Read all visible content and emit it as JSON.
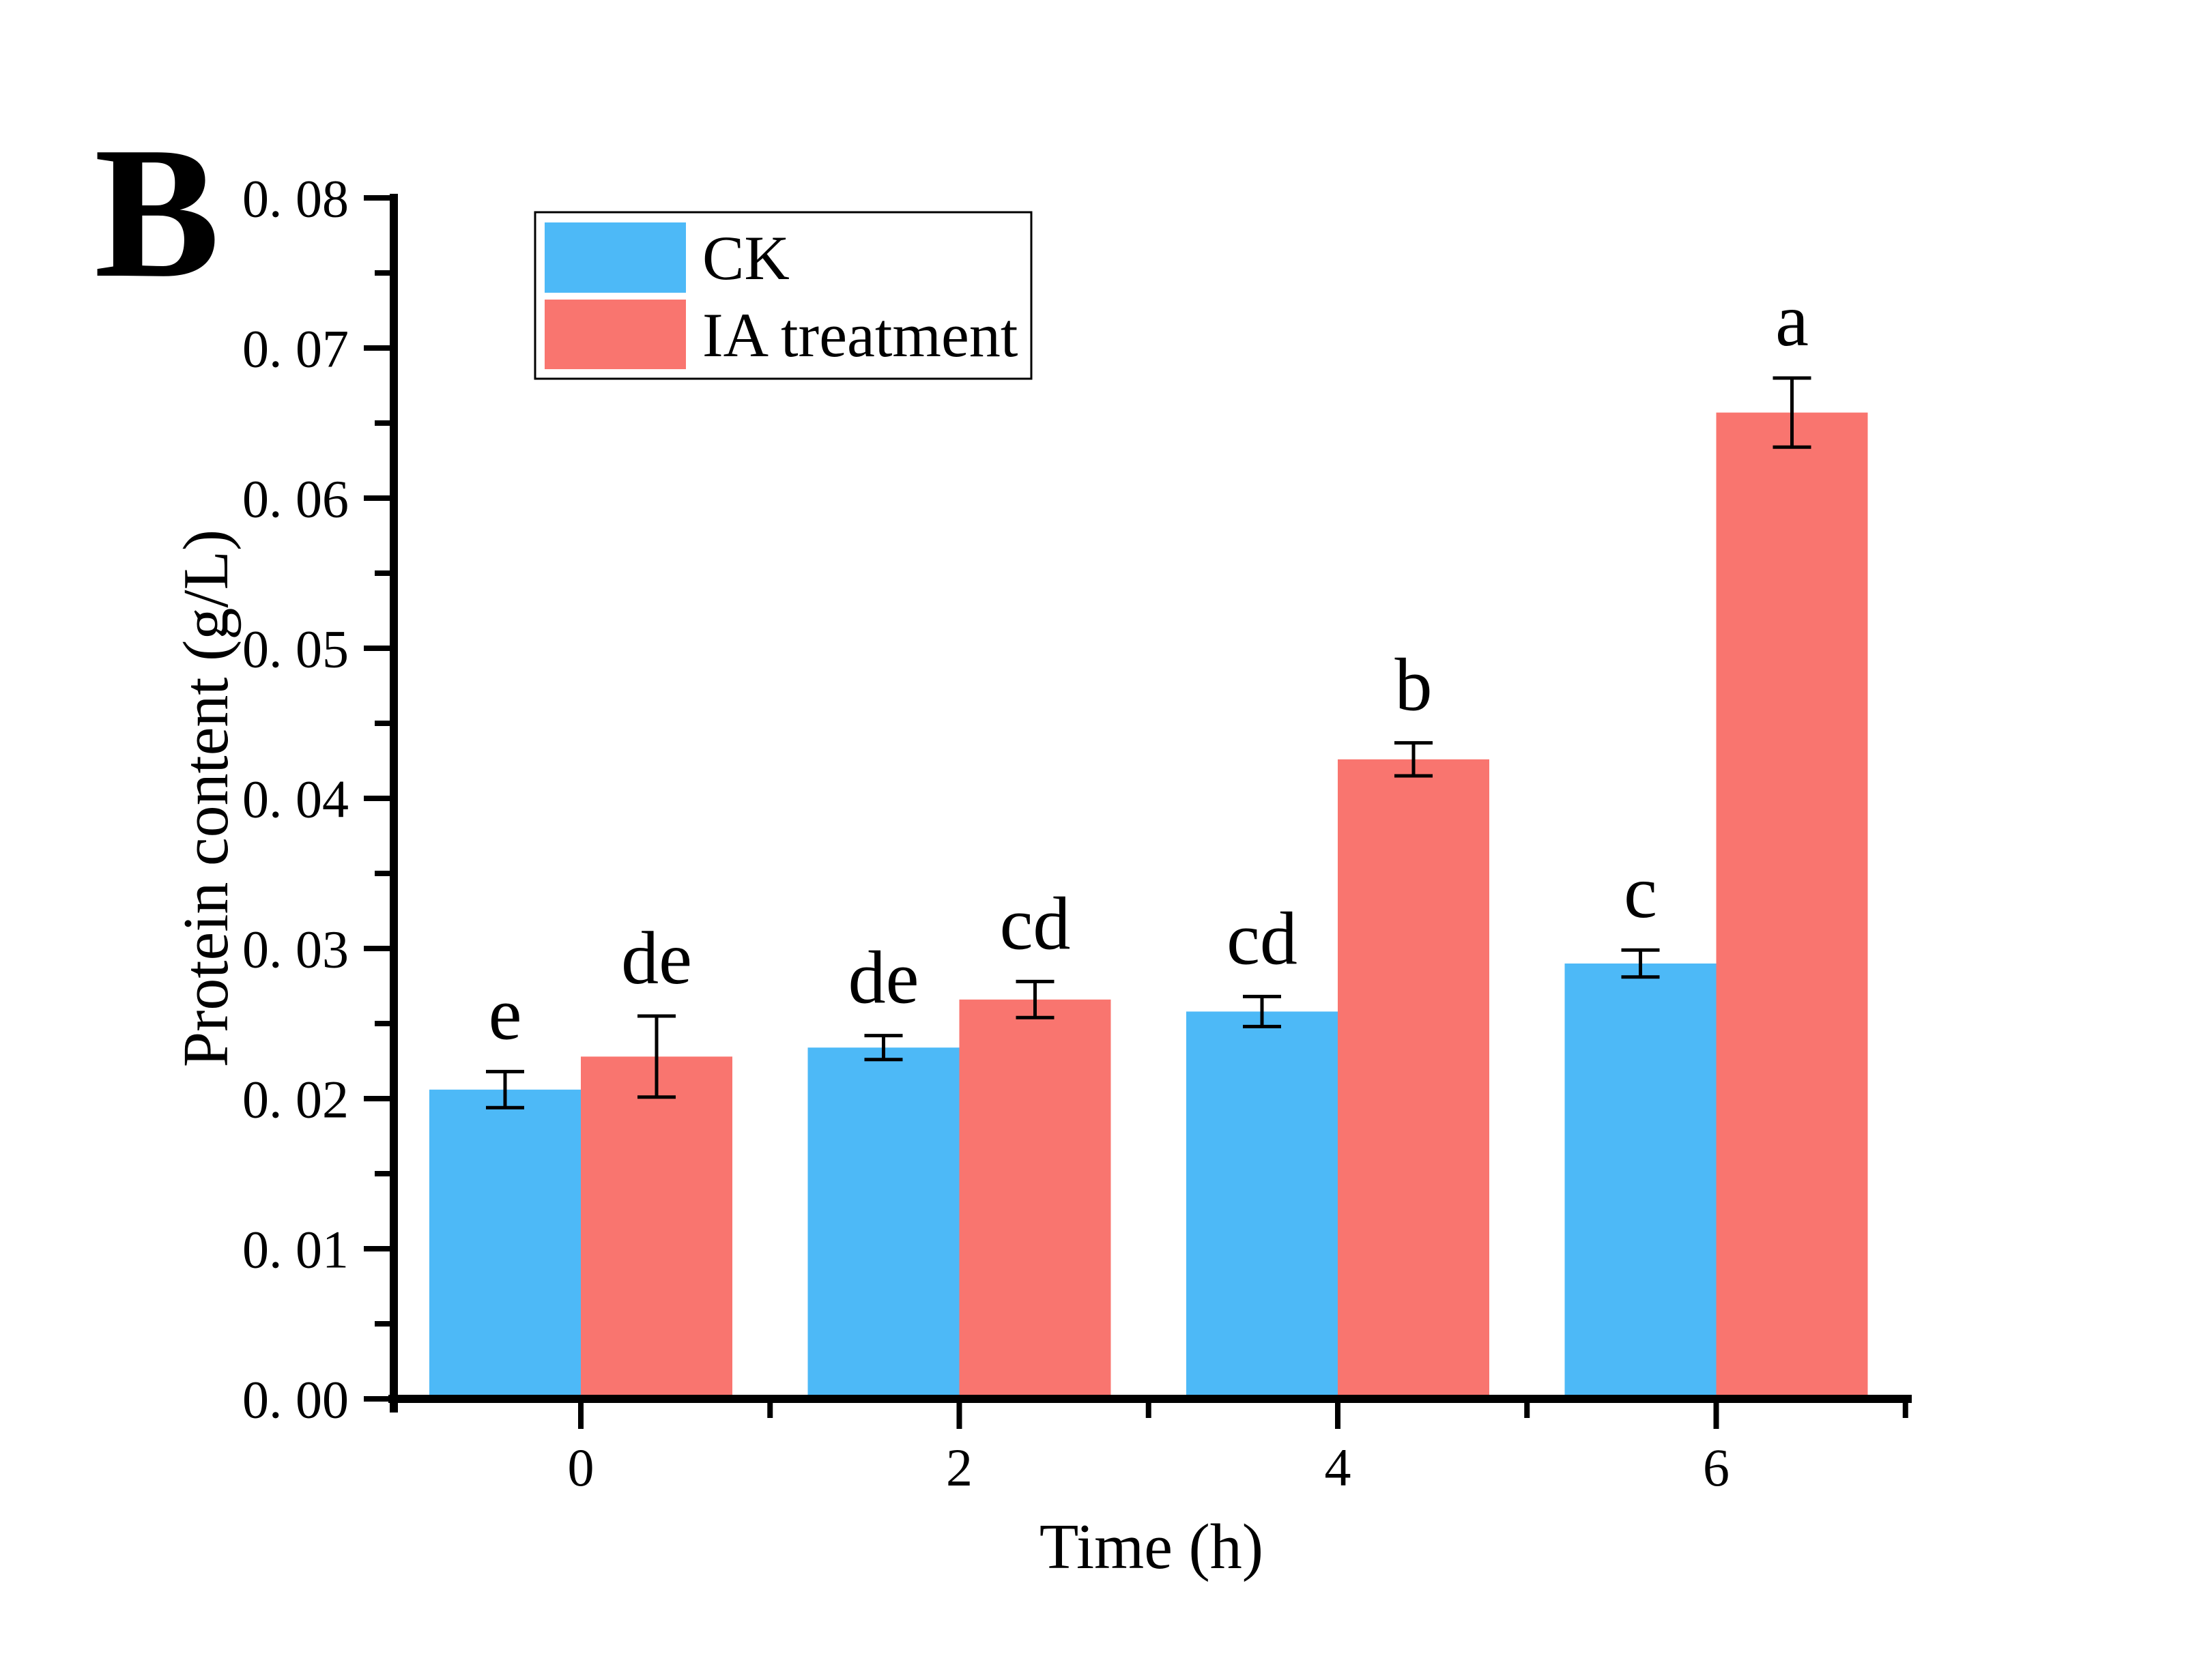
{
  "panel_label": "B",
  "axes": {
    "y_title": "Protein content (g/L)",
    "x_title": "Time (h)",
    "y_tick_labels": [
      "0. 00",
      "0. 01",
      "0. 02",
      "0. 03",
      "0. 04",
      "0. 05",
      "0. 06",
      "0. 07",
      "0. 08"
    ],
    "x_tick_labels": [
      "0",
      "2",
      "4",
      "6"
    ]
  },
  "legend": {
    "entries": [
      {
        "label": "CK",
        "color": "#4DB9F7"
      },
      {
        "label": "IA treatment",
        "color": "#F9756F"
      }
    ]
  },
  "colors": {
    "ck_bar": "#4DB9F7",
    "ia_bar": "#F9756F",
    "axis": "#000000"
  },
  "chart_data": {
    "type": "bar",
    "title": "",
    "xlabel": "Time (h)",
    "ylabel": "Protein content (g/L)",
    "categories": [
      "0",
      "2",
      "4",
      "6"
    ],
    "ylim": [
      0,
      0.08
    ],
    "ytick_interval": 0.01,
    "minor_tick_interval": 0.005,
    "grid": false,
    "legend_position": "top-left",
    "error_bars": "plus-minus-sd",
    "series": [
      {
        "name": "CK",
        "color": "#4DB9F7",
        "values": [
          0.0206,
          0.0234,
          0.0258,
          0.029
        ],
        "errors": [
          0.0012,
          0.0008,
          0.001,
          0.0009
        ],
        "sig_letters": [
          "e",
          "de",
          "cd",
          "c"
        ]
      },
      {
        "name": "IA treatment",
        "color": "#F9756F",
        "values": [
          0.0228,
          0.0266,
          0.0426,
          0.0657
        ],
        "errors": [
          0.0027,
          0.0012,
          0.0011,
          0.0023
        ],
        "sig_letters": [
          "de",
          "cd",
          "b",
          "a"
        ]
      }
    ]
  }
}
